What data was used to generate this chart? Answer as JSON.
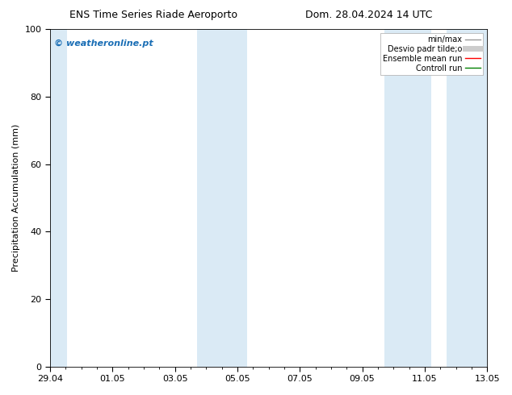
{
  "title_left": "ENS Time Series Riade Aeroporto",
  "title_right": "Dom. 28.04.2024 14 UTC",
  "ylabel": "Precipitation Accumulation (mm)",
  "ylim": [
    0,
    100
  ],
  "xlim": [
    0,
    14
  ],
  "xtick_labels": [
    "29.04",
    "01.05",
    "03.05",
    "05.05",
    "07.05",
    "09.05",
    "11.05",
    "13.05"
  ],
  "xtick_positions": [
    0,
    2,
    4,
    6,
    8,
    10,
    12,
    14
  ],
  "ytick_positions": [
    0,
    20,
    40,
    60,
    80,
    100
  ],
  "ytick_labels": [
    "0",
    "20",
    "40",
    "60",
    "80",
    "100"
  ],
  "shaded_bands": [
    {
      "xmin": -0.05,
      "xmax": 0.55
    },
    {
      "xmin": 4.7,
      "xmax": 6.3
    },
    {
      "xmin": 10.7,
      "xmax": 12.2
    },
    {
      "xmin": 12.7,
      "xmax": 14.05
    }
  ],
  "band_color": "#daeaf5",
  "watermark_text": "© weatheronline.pt",
  "watermark_color": "#1a6eb5",
  "legend_labels": [
    "min/max",
    "Desvio padr tilde;o",
    "Ensemble mean run",
    "Controll run"
  ],
  "legend_colors": [
    "#999999",
    "#cccccc",
    "red",
    "green"
  ],
  "legend_lw": [
    1.0,
    5.0,
    1.0,
    1.0
  ],
  "bg_color": "white",
  "title_fontsize": 9,
  "ylabel_fontsize": 8,
  "tick_fontsize": 8,
  "legend_fontsize": 7,
  "watermark_fontsize": 8
}
